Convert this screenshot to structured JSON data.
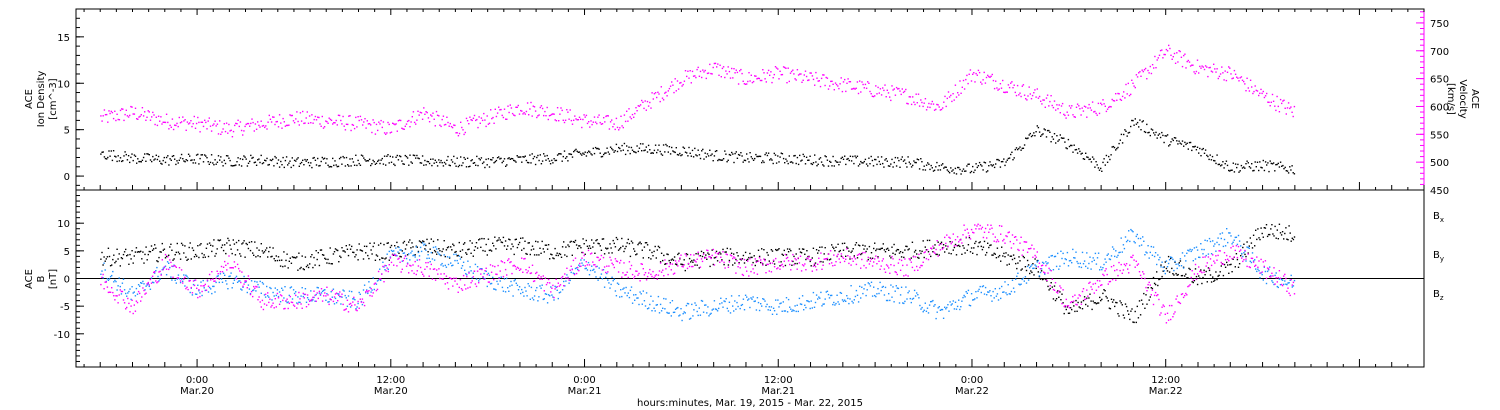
{
  "chart_data": [
    {
      "type": "scatter",
      "panel": "top",
      "title": "",
      "ylabel_left_lines": [
        "ACE",
        "Ion Density",
        "[cm^-3]"
      ],
      "ylabel_right_lines": [
        "ACE",
        "Velocity",
        "[km/s]"
      ],
      "ylim_left": [
        -1.5,
        18
      ],
      "ylim_right": [
        450,
        775
      ],
      "yticks_left": [
        0,
        5,
        10,
        15
      ],
      "yticks_right": [
        450,
        500,
        550,
        600,
        650,
        700,
        750
      ],
      "y2_color": "#ff00ff",
      "series": [
        {
          "name": "",
          "axis": "left",
          "color": "#000000",
          "hours": [
            -6,
            -4,
            -2,
            0,
            2,
            4,
            6,
            8,
            10,
            12,
            14,
            16,
            18,
            20,
            22,
            24,
            26,
            28,
            30,
            32,
            34,
            36,
            38,
            40,
            42,
            44,
            46,
            48,
            50,
            52,
            54,
            56,
            58,
            60,
            62,
            64,
            66,
            68
          ],
          "values": [
            2.5,
            2.0,
            1.8,
            1.9,
            1.7,
            1.8,
            1.5,
            1.6,
            1.8,
            1.8,
            1.7,
            1.6,
            1.6,
            1.8,
            2.0,
            2.5,
            3.0,
            3.0,
            2.8,
            2.3,
            2.0,
            2.0,
            1.8,
            1.7,
            1.6,
            1.6,
            1.0,
            0.8,
            1.5,
            5.0,
            3.5,
            1.0,
            6.0,
            4.0,
            3.0,
            1.0,
            1.2,
            0.8
          ]
        },
        {
          "name": "",
          "axis": "right",
          "color": "#ff00ff",
          "hours": [
            -6,
            -4,
            -2,
            0,
            2,
            4,
            6,
            8,
            10,
            12,
            14,
            16,
            18,
            20,
            22,
            24,
            26,
            28,
            30,
            32,
            34,
            36,
            38,
            40,
            42,
            44,
            46,
            48,
            50,
            52,
            54,
            56,
            58,
            60,
            62,
            64,
            66,
            68
          ],
          "values": [
            580,
            590,
            575,
            570,
            560,
            570,
            580,
            575,
            570,
            560,
            590,
            560,
            580,
            600,
            590,
            575,
            570,
            610,
            650,
            670,
            650,
            660,
            650,
            640,
            630,
            620,
            600,
            660,
            640,
            620,
            590,
            600,
            640,
            700,
            670,
            660,
            620,
            590
          ]
        }
      ]
    },
    {
      "type": "scatter",
      "panel": "bottom",
      "title": "",
      "ylabel_left_lines": [
        "ACE",
        "B",
        "[nT]"
      ],
      "ylim": [
        -16,
        16
      ],
      "yticks": [
        -10,
        -5,
        0,
        5,
        10
      ],
      "zero_line": true,
      "series": [
        {
          "name": "Bx",
          "color": "#000000",
          "hours": [
            -6,
            -4,
            -2,
            0,
            2,
            4,
            6,
            8,
            10,
            12,
            14,
            16,
            18,
            20,
            22,
            24,
            26,
            28,
            30,
            32,
            34,
            36,
            38,
            40,
            42,
            44,
            46,
            48,
            50,
            52,
            54,
            56,
            58,
            60,
            62,
            64,
            66,
            68
          ],
          "values": [
            4,
            4,
            5,
            5,
            6,
            5,
            3,
            4,
            5,
            5,
            6,
            5,
            6,
            6,
            5,
            6,
            6,
            5,
            3,
            4,
            4,
            4,
            4,
            5,
            5,
            5,
            6,
            6,
            4,
            2,
            -6,
            -3,
            -7,
            3,
            0,
            2,
            9,
            8
          ]
        },
        {
          "name": "By",
          "color": "#1e90ff",
          "hours": [
            -6,
            -4,
            -2,
            0,
            2,
            4,
            6,
            8,
            10,
            12,
            14,
            16,
            18,
            20,
            22,
            24,
            26,
            28,
            30,
            32,
            34,
            36,
            38,
            40,
            42,
            44,
            46,
            48,
            50,
            52,
            54,
            56,
            58,
            60,
            62,
            64,
            66,
            68
          ],
          "values": [
            2,
            -3,
            2,
            -2,
            0,
            -2,
            -3,
            -3,
            -4,
            4,
            5,
            3,
            0,
            -2,
            -3,
            3,
            -2,
            -4,
            -6,
            -5,
            -4,
            -5,
            -4,
            -3,
            -2,
            -3,
            -6,
            -3,
            -2,
            2,
            4,
            3,
            8,
            2,
            5,
            8,
            1,
            -1
          ]
        },
        {
          "name": "Bz",
          "color": "#ff00ff",
          "hours": [
            -6,
            -4,
            -2,
            0,
            2,
            4,
            6,
            8,
            10,
            12,
            14,
            16,
            18,
            20,
            22,
            24,
            26,
            28,
            30,
            32,
            34,
            36,
            38,
            40,
            42,
            44,
            46,
            48,
            50,
            52,
            54,
            56,
            58,
            60,
            62,
            64,
            66,
            68
          ],
          "values": [
            0,
            -5,
            3,
            -2,
            3,
            -4,
            -4,
            -3,
            -5,
            3,
            2,
            -1,
            1,
            3,
            -2,
            4,
            2,
            1,
            3,
            4,
            2,
            3,
            3,
            4,
            3,
            2,
            6,
            9,
            8,
            4,
            -5,
            0,
            3,
            -7,
            2,
            5,
            2,
            -2
          ]
        }
      ],
      "legend_labels": [
        {
          "base": "B",
          "sub": "x",
          "color": "#000000"
        },
        {
          "base": "B",
          "sub": "y",
          "color": "#1e90ff"
        },
        {
          "base": "B",
          "sub": "z",
          "color": "#ff00ff"
        }
      ]
    }
  ],
  "x_axis": {
    "range_hours": [
      -7.5,
      76
    ],
    "ticks": [
      {
        "hours": 0,
        "time": "0:00",
        "date": "Mar.20"
      },
      {
        "hours": 12,
        "time": "12:00",
        "date": "Mar.20"
      },
      {
        "hours": 24,
        "time": "0:00",
        "date": "Mar.21"
      },
      {
        "hours": 36,
        "time": "12:00",
        "date": "Mar.21"
      },
      {
        "hours": 48,
        "time": "0:00",
        "date": "Mar.22"
      },
      {
        "hours": 60,
        "time": "12:00",
        "date": "Mar.22"
      }
    ],
    "xlabel": "hours:minutes, Mar. 19, 2015 - Mar. 22, 2015"
  }
}
